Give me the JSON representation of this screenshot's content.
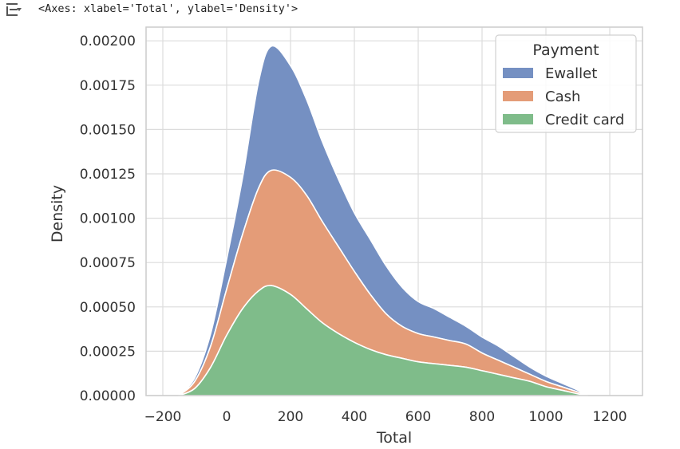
{
  "cell": {
    "output_text": "<Axes: xlabel='Total', ylabel='Density'>",
    "output_icon": "output-toggle-icon"
  },
  "colors": {
    "Ewallet": "#7590c2",
    "Cash": "#e49c78",
    "Credit card": "#7fbc8a",
    "grid": "#dcdcdc",
    "spine": "#cccccc"
  },
  "chart_data": {
    "type": "area",
    "stacked": true,
    "xlabel": "Total",
    "ylabel": "Density",
    "xlim": [
      -250,
      1300
    ],
    "ylim": [
      0,
      0.0021
    ],
    "xticks": [
      -200,
      0,
      200,
      400,
      600,
      800,
      1000,
      1200
    ],
    "xtick_labels": [
      "−200",
      "0",
      "200",
      "400",
      "600",
      "800",
      "1000",
      "1200"
    ],
    "yticks": [
      0,
      0.00025,
      0.0005,
      0.00075,
      0.001,
      0.00125,
      0.0015,
      0.00175,
      0.002
    ],
    "ytick_labels": [
      "0.00000",
      "0.00025",
      "0.00050",
      "0.00075",
      "0.00100",
      "0.00125",
      "0.00150",
      "0.00175",
      "0.00200"
    ],
    "grid": true,
    "legend": {
      "title": "Payment",
      "placement": "top-right",
      "entries": [
        "Ewallet",
        "Cash",
        "Credit card"
      ]
    },
    "x": [
      -150,
      -100,
      -50,
      0,
      50,
      100,
      140,
      200,
      250,
      300,
      350,
      400,
      450,
      500,
      550,
      600,
      650,
      700,
      750,
      800,
      850,
      900,
      950,
      1000,
      1050,
      1100,
      1130
    ],
    "series": [
      {
        "name": "Credit card",
        "values": [
          0,
          4e-05,
          0.00016,
          0.00034,
          0.00049,
          0.00059,
          0.00062,
          0.00057,
          0.00049,
          0.00041,
          0.00035,
          0.0003,
          0.00026,
          0.00023,
          0.00021,
          0.00019,
          0.00018,
          0.00017,
          0.00016,
          0.00014,
          0.00012,
          0.0001,
          8e-05,
          5e-05,
          3e-05,
          1e-05,
          0
        ]
      },
      {
        "name": "Cash",
        "values": [
          0,
          4e-05,
          0.00012,
          0.00026,
          0.00042,
          0.00058,
          0.00065,
          0.00066,
          0.00064,
          0.00057,
          0.00049,
          0.0004,
          0.00031,
          0.00023,
          0.00018,
          0.00016,
          0.00015,
          0.00014,
          0.00013,
          0.0001,
          8e-05,
          6e-05,
          4e-05,
          3e-05,
          2e-05,
          1e-05,
          0
        ]
      },
      {
        "name": "Ewallet",
        "values": [
          0,
          2e-05,
          7e-05,
          0.00017,
          0.00032,
          0.0006,
          0.0007,
          0.00063,
          0.00054,
          0.00045,
          0.00038,
          0.00033,
          0.00031,
          0.00027,
          0.00022,
          0.00018,
          0.00016,
          0.00013,
          0.0001,
          9e-05,
          8e-05,
          6e-05,
          4e-05,
          3e-05,
          2e-05,
          1e-05,
          0
        ]
      }
    ]
  }
}
